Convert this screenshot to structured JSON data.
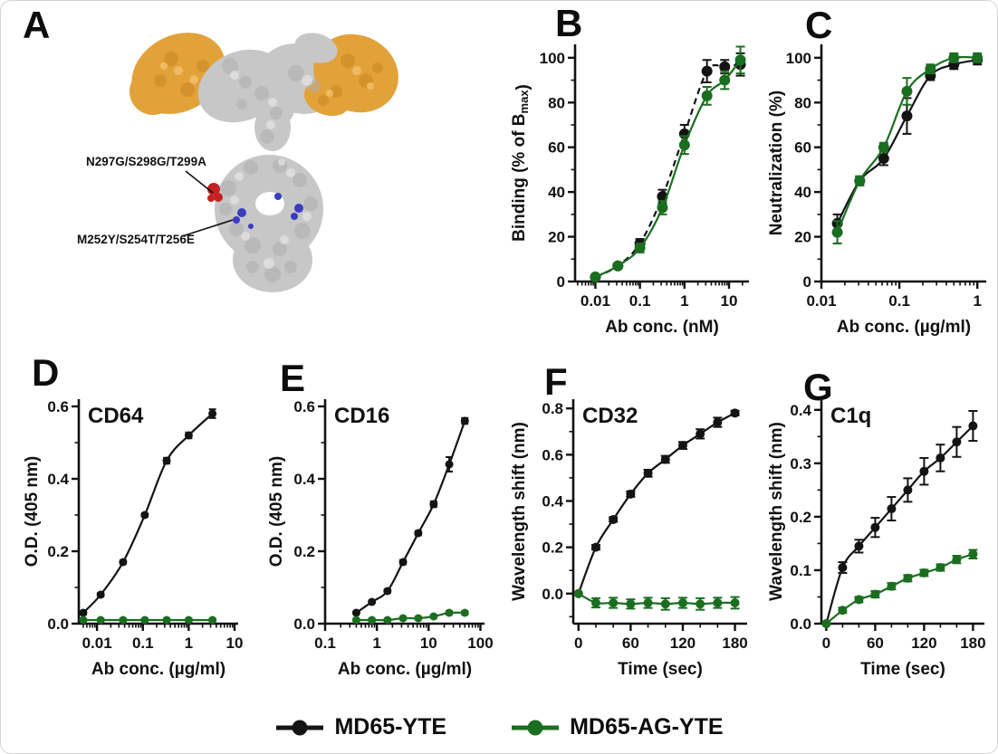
{
  "figure": {
    "panel_a": {
      "label": "A",
      "annotations": [
        {
          "text": "N297G/S298G/T299A"
        },
        {
          "text": "M252Y/S254T/T256E"
        }
      ],
      "colors": {
        "fab_orange": "#e2a23a",
        "surface_gray": "#c7c7c7",
        "mutation_red": "#c32222",
        "mutation_blue": "#3b3bc0"
      }
    },
    "legend": {
      "items": [
        {
          "label": "MD65-YTE",
          "color": "#141414"
        },
        {
          "label": "MD65-AG-YTE",
          "color": "#1b6e20"
        }
      ]
    }
  },
  "chart_data": [
    {
      "panel": "B",
      "type": "scatter",
      "title": "",
      "xscale": "log",
      "xlabel": "Ab conc. (nM)",
      "ylabel": "Binding (% of Bmax)",
      "ylabel_parts": [
        {
          "t": "Binding (% of B"
        },
        {
          "t": "max",
          "sub": true
        },
        {
          "t": ")"
        }
      ],
      "xlim": [
        0.0035,
        28
      ],
      "ylim": [
        0,
        106
      ],
      "xticks": [
        {
          "v": 0.01,
          "l": "0.01"
        },
        {
          "v": 0.1,
          "l": "0.1"
        },
        {
          "v": 1,
          "l": "1"
        },
        {
          "v": 10,
          "l": "10"
        }
      ],
      "yticks": [
        {
          "v": 0,
          "l": "0"
        },
        {
          "v": 20,
          "l": "20"
        },
        {
          "v": 40,
          "l": "40"
        },
        {
          "v": 60,
          "l": "60"
        },
        {
          "v": 80,
          "l": "80"
        },
        {
          "v": 100,
          "l": "100"
        }
      ],
      "yminor_step": 10,
      "xminor_log": true,
      "series": [
        {
          "name": "MD65-YTE",
          "color": "#141414",
          "dash": "7 5",
          "x": [
            0.01,
            0.032,
            0.1,
            0.32,
            1,
            3.2,
            8,
            18
          ],
          "y": [
            2,
            7,
            17,
            38,
            66,
            94,
            96,
            97
          ],
          "err": [
            1,
            1,
            2,
            3,
            4,
            5,
            3,
            5
          ]
        },
        {
          "name": "MD65-AG-YTE",
          "color": "#1b6e20",
          "dash": "",
          "x": [
            0.01,
            0.032,
            0.1,
            0.32,
            1,
            3.2,
            8,
            18
          ],
          "y": [
            2,
            7,
            15,
            33,
            61,
            83,
            90,
            99
          ],
          "err": [
            1,
            1,
            2,
            3,
            4,
            4,
            4,
            6
          ]
        }
      ]
    },
    {
      "panel": "C",
      "type": "scatter",
      "title": "",
      "xscale": "log",
      "xlabel": "Ab conc. (µg/ml)",
      "ylabel": "Neutralization (%)",
      "xlim": [
        0.01,
        1.3
      ],
      "ylim": [
        0,
        106
      ],
      "xticks": [
        {
          "v": 0.01,
          "l": "0.01"
        },
        {
          "v": 0.1,
          "l": "0.1"
        },
        {
          "v": 1,
          "l": "1"
        }
      ],
      "yticks": [
        {
          "v": 0,
          "l": "0"
        },
        {
          "v": 20,
          "l": "20"
        },
        {
          "v": 40,
          "l": "40"
        },
        {
          "v": 60,
          "l": "60"
        },
        {
          "v": 80,
          "l": "80"
        },
        {
          "v": 100,
          "l": "100"
        }
      ],
      "yminor_step": 10,
      "xminor_log": true,
      "series": [
        {
          "name": "MD65-YTE",
          "color": "#141414",
          "dash": "",
          "x": [
            0.016,
            0.031,
            0.063,
            0.125,
            0.25,
            0.5,
            1
          ],
          "y": [
            26,
            45,
            55,
            74,
            92,
            97,
            99
          ],
          "err": [
            4,
            2,
            3,
            8,
            2,
            2,
            2
          ]
        },
        {
          "name": "MD65-AG-YTE",
          "color": "#1b6e20",
          "dash": "",
          "x": [
            0.016,
            0.031,
            0.063,
            0.125,
            0.25,
            0.5,
            1
          ],
          "y": [
            22,
            45,
            60,
            85,
            95,
            100,
            100
          ],
          "err": [
            5,
            2,
            2,
            6,
            2,
            2,
            2
          ]
        }
      ]
    },
    {
      "panel": "D",
      "type": "scatter",
      "title": "CD64",
      "xscale": "log",
      "xlabel": "Ab conc. (µg/ml)",
      "ylabel": "O.D. (405 nm)",
      "xlim": [
        0.004,
        12
      ],
      "ylim": [
        0,
        0.62
      ],
      "xticks": [
        {
          "v": 0.01,
          "l": "0.01"
        },
        {
          "v": 0.1,
          "l": "0.1"
        },
        {
          "v": 1,
          "l": "1"
        },
        {
          "v": 10,
          "l": "10"
        }
      ],
      "yticks": [
        {
          "v": 0,
          "l": "0.0"
        },
        {
          "v": 0.2,
          "l": "0.2"
        },
        {
          "v": 0.4,
          "l": "0.4"
        },
        {
          "v": 0.6,
          "l": "0.6"
        }
      ],
      "yminor_step": 0.1,
      "xminor_log": true,
      "series": [
        {
          "name": "MD65-YTE",
          "color": "#141414",
          "dash": "",
          "x": [
            0.005,
            0.012,
            0.037,
            0.11,
            0.33,
            1,
            3.3
          ],
          "y": [
            0.03,
            0.08,
            0.17,
            0.3,
            0.45,
            0.52,
            0.58
          ],
          "err": [
            0.005,
            0.005,
            0.005,
            0.005,
            0.008,
            0.008,
            0.012
          ]
        },
        {
          "name": "MD65-AG-YTE",
          "color": "#1b6e20",
          "dash": "",
          "x": [
            0.005,
            0.012,
            0.037,
            0.11,
            0.33,
            1,
            3.3
          ],
          "y": [
            0.01,
            0.01,
            0.01,
            0.01,
            0.01,
            0.01,
            0.01
          ],
          "err": [
            0.004,
            0.004,
            0.004,
            0.004,
            0.004,
            0.004,
            0.004
          ]
        }
      ]
    },
    {
      "panel": "E",
      "type": "scatter",
      "title": "CD16",
      "xscale": "log",
      "xlabel": "Ab conc. (µg/ml)",
      "ylabel": "O.D. (405 nm)",
      "xlim": [
        0.1,
        120
      ],
      "ylim": [
        0,
        0.62
      ],
      "xticks": [
        {
          "v": 0.1,
          "l": "0.1"
        },
        {
          "v": 1,
          "l": "1"
        },
        {
          "v": 10,
          "l": "10"
        },
        {
          "v": 100,
          "l": "100"
        }
      ],
      "yticks": [
        {
          "v": 0,
          "l": "0.0"
        },
        {
          "v": 0.2,
          "l": "0.2"
        },
        {
          "v": 0.4,
          "l": "0.4"
        },
        {
          "v": 0.6,
          "l": "0.6"
        }
      ],
      "yminor_step": 0.1,
      "xminor_log": true,
      "series": [
        {
          "name": "MD65-YTE",
          "color": "#141414",
          "dash": "",
          "x": [
            0.4,
            0.8,
            1.6,
            3.2,
            6.3,
            12.5,
            25,
            50
          ],
          "y": [
            0.03,
            0.06,
            0.09,
            0.17,
            0.25,
            0.33,
            0.44,
            0.56
          ],
          "err": [
            0.004,
            0.004,
            0.005,
            0.006,
            0.006,
            0.008,
            0.02,
            0.008
          ]
        },
        {
          "name": "MD65-AG-YTE",
          "color": "#1b6e20",
          "dash": "",
          "x": [
            0.4,
            0.8,
            1.6,
            3.2,
            6.3,
            12.5,
            25,
            50
          ],
          "y": [
            0.01,
            0.01,
            0.01,
            0.015,
            0.015,
            0.02,
            0.03,
            0.03
          ],
          "err": [
            0.004,
            0.004,
            0.004,
            0.004,
            0.004,
            0.004,
            0.005,
            0.005
          ]
        }
      ]
    },
    {
      "panel": "F",
      "type": "scatter",
      "title": "CD32",
      "xscale": "linear",
      "xlabel": "Time (sec)",
      "ylabel": "Wavelength shift (nm)",
      "xlim": [
        -6,
        194
      ],
      "ylim": [
        -0.13,
        0.84
      ],
      "xticks": [
        {
          "v": 0,
          "l": "0"
        },
        {
          "v": 60,
          "l": "60"
        },
        {
          "v": 120,
          "l": "120"
        },
        {
          "v": 180,
          "l": "180"
        }
      ],
      "yticks": [
        {
          "v": 0,
          "l": "0.0"
        },
        {
          "v": 0.2,
          "l": "0.2"
        },
        {
          "v": 0.4,
          "l": "0.4"
        },
        {
          "v": 0.6,
          "l": "0.6"
        },
        {
          "v": 0.8,
          "l": "0.8"
        }
      ],
      "yminor_step": 0.1,
      "xminor_step": 20,
      "series": [
        {
          "name": "MD65-YTE",
          "color": "#141414",
          "dash": "",
          "x": [
            0,
            20,
            40,
            60,
            80,
            100,
            120,
            140,
            160,
            180
          ],
          "y": [
            0.0,
            0.2,
            0.32,
            0.43,
            0.52,
            0.58,
            0.64,
            0.69,
            0.74,
            0.78
          ],
          "err": [
            0,
            0.01,
            0.01,
            0.012,
            0.015,
            0.015,
            0.015,
            0.02,
            0.02,
            0.01
          ]
        },
        {
          "name": "MD65-AG-YTE",
          "color": "#1b6e20",
          "dash": "",
          "x": [
            0,
            20,
            40,
            60,
            80,
            100,
            120,
            140,
            160,
            180
          ],
          "y": [
            0.0,
            -0.04,
            -0.04,
            -0.045,
            -0.04,
            -0.045,
            -0.04,
            -0.045,
            -0.04,
            -0.04
          ],
          "err": [
            0,
            0.02,
            0.022,
            0.02,
            0.022,
            0.025,
            0.022,
            0.025,
            0.022,
            0.025
          ]
        }
      ]
    },
    {
      "panel": "G",
      "type": "scatter",
      "title": "C1q",
      "xscale": "linear",
      "xlabel": "Time (sec)",
      "ylabel": "Wavelength shift (nm)",
      "xlim": [
        -6,
        194
      ],
      "ylim": [
        0,
        0.42
      ],
      "xticks": [
        {
          "v": 0,
          "l": "0"
        },
        {
          "v": 60,
          "l": "60"
        },
        {
          "v": 120,
          "l": "120"
        },
        {
          "v": 180,
          "l": "180"
        }
      ],
      "yticks": [
        {
          "v": 0,
          "l": "0.0"
        },
        {
          "v": 0.1,
          "l": "0.1"
        },
        {
          "v": 0.2,
          "l": "0.2"
        },
        {
          "v": 0.3,
          "l": "0.3"
        },
        {
          "v": 0.4,
          "l": "0.4"
        }
      ],
      "yminor_step": 0.05,
      "xminor_step": 20,
      "series": [
        {
          "name": "MD65-YTE",
          "color": "#141414",
          "dash": "",
          "x": [
            0,
            20,
            40,
            60,
            80,
            100,
            120,
            140,
            160,
            180
          ],
          "y": [
            0.0,
            0.105,
            0.145,
            0.18,
            0.215,
            0.25,
            0.285,
            0.31,
            0.34,
            0.37
          ],
          "err": [
            0,
            0.01,
            0.012,
            0.018,
            0.022,
            0.022,
            0.025,
            0.025,
            0.028,
            0.028
          ]
        },
        {
          "name": "MD65-AG-YTE",
          "color": "#1b6e20",
          "dash": "",
          "x": [
            0,
            20,
            40,
            60,
            80,
            100,
            120,
            140,
            160,
            180
          ],
          "y": [
            0.0,
            0.025,
            0.045,
            0.055,
            0.07,
            0.085,
            0.095,
            0.105,
            0.12,
            0.13
          ],
          "err": [
            0,
            0.005,
            0.005,
            0.006,
            0.006,
            0.006,
            0.006,
            0.006,
            0.007,
            0.008
          ]
        }
      ]
    }
  ]
}
